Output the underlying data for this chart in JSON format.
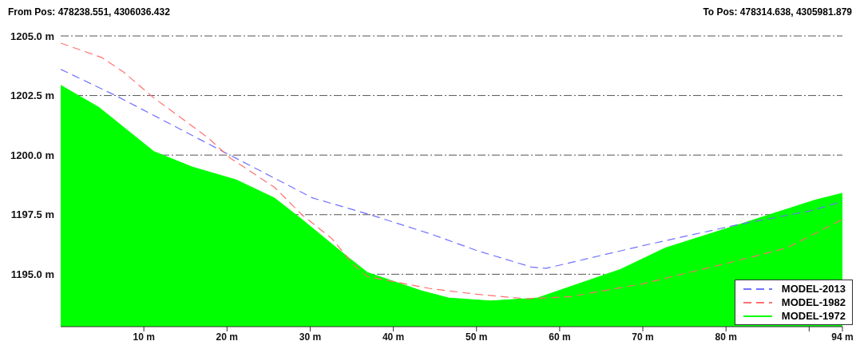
{
  "chart_data": {
    "type": "line",
    "annotations": [
      "From Pos: 478238.551, 4306036.432",
      "To Pos: 478314.638, 4305981.879"
    ],
    "xlim": [
      0,
      94
    ],
    "xticks": [
      {
        "value": 10,
        "label": "10 m"
      },
      {
        "value": 20,
        "label": "20 m"
      },
      {
        "value": 30,
        "label": "30 m"
      },
      {
        "value": 40,
        "label": "40 m"
      },
      {
        "value": 50,
        "label": "50 m"
      },
      {
        "value": 60,
        "label": "60 m"
      },
      {
        "value": 70,
        "label": "70 m"
      },
      {
        "value": 80,
        "label": "80 m"
      },
      {
        "value": 90,
        "label": null
      },
      {
        "value": 94,
        "label": "94 m"
      }
    ],
    "ylim": [
      1192.8,
      1205
    ],
    "yticks": [
      {
        "value": 1195,
        "label": "1195.0 m"
      },
      {
        "value": 1197.5,
        "label": "1197.5 m"
      },
      {
        "value": 1200,
        "label": "1200.0 m"
      },
      {
        "value": 1202.5,
        "label": "1202.5 m"
      },
      {
        "value": 1205,
        "label": "1205.0 m"
      }
    ],
    "grid": "y",
    "legend": "bottom right",
    "line_style": "dashed",
    "series": [
      {
        "name": "MODEL-2013",
        "color": "#7070ff",
        "x": [
          0,
          6.6,
          19.8,
          30.3,
          37.2,
          44.4,
          50,
          56.6,
          58.4,
          70,
          81.7,
          90,
          94
        ],
        "values": [
          1203.6,
          1202.5,
          1200.1,
          1198.2,
          1197.5,
          1196.7,
          1196.0,
          1195.3,
          1195.25,
          1196.2,
          1197.1,
          1197.65,
          1198.05
        ]
      },
      {
        "name": "MODEL-1982",
        "color": "#ff7070",
        "x": [
          0,
          4.9,
          7.5,
          11.2,
          15.5,
          17.8,
          20.4,
          25.7,
          29,
          32.6,
          35.2,
          36.9,
          44.4,
          50,
          56,
          61.3,
          70,
          80,
          87.3,
          94
        ],
        "values": [
          1204.7,
          1204.1,
          1203.5,
          1202.4,
          1201.3,
          1200.7,
          1199.87,
          1198.65,
          1197.5,
          1196.5,
          1195.4,
          1194.9,
          1194.4,
          1194.16,
          1193.97,
          1194.06,
          1194.6,
          1195.45,
          1196.1,
          1197.3
        ]
      },
      {
        "name": "MODEL-1972",
        "type": "area",
        "color": "#00ff00",
        "x": [
          0,
          4.6,
          11.2,
          15.8,
          21.1,
          25.7,
          29,
          34.6,
          36.9,
          43.4,
          46.7,
          51.7,
          57.3,
          67.3,
          72.7,
          81.7,
          90.6,
          94
        ],
        "values": [
          1202.93,
          1202.0,
          1200.15,
          1199.5,
          1198.96,
          1198.2,
          1197.3,
          1195.7,
          1195.07,
          1194.3,
          1194.0,
          1193.88,
          1194.0,
          1195.2,
          1196.1,
          1197.1,
          1198.1,
          1198.4
        ]
      }
    ]
  }
}
